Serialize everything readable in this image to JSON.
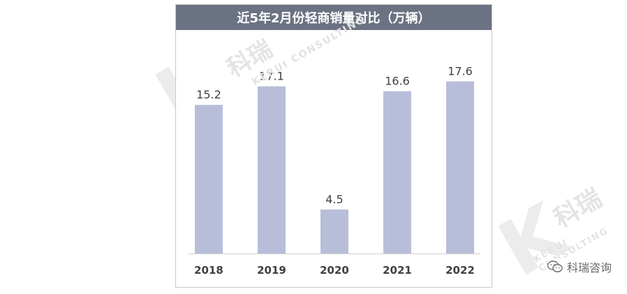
{
  "chart_data": {
    "type": "bar",
    "title": "近5年2月份轻商销量对比（万辆）",
    "categories": [
      "2018",
      "2019",
      "2020",
      "2021",
      "2022"
    ],
    "values": [
      15.2,
      17.1,
      4.5,
      16.6,
      17.6
    ],
    "value_labels": [
      "15.2",
      "17.1",
      "4.5",
      "16.6",
      "17.6"
    ],
    "ylim": [
      0,
      20
    ],
    "grid": false,
    "legend": "none",
    "bar_color": "#b8bed9",
    "title_bar_color": "#6b7282"
  },
  "watermark": {
    "brand": "科瑞咨询",
    "brand_short": "科瑞",
    "english": "KERUI CONSULTING"
  },
  "source": {
    "label": "科瑞咨询"
  }
}
